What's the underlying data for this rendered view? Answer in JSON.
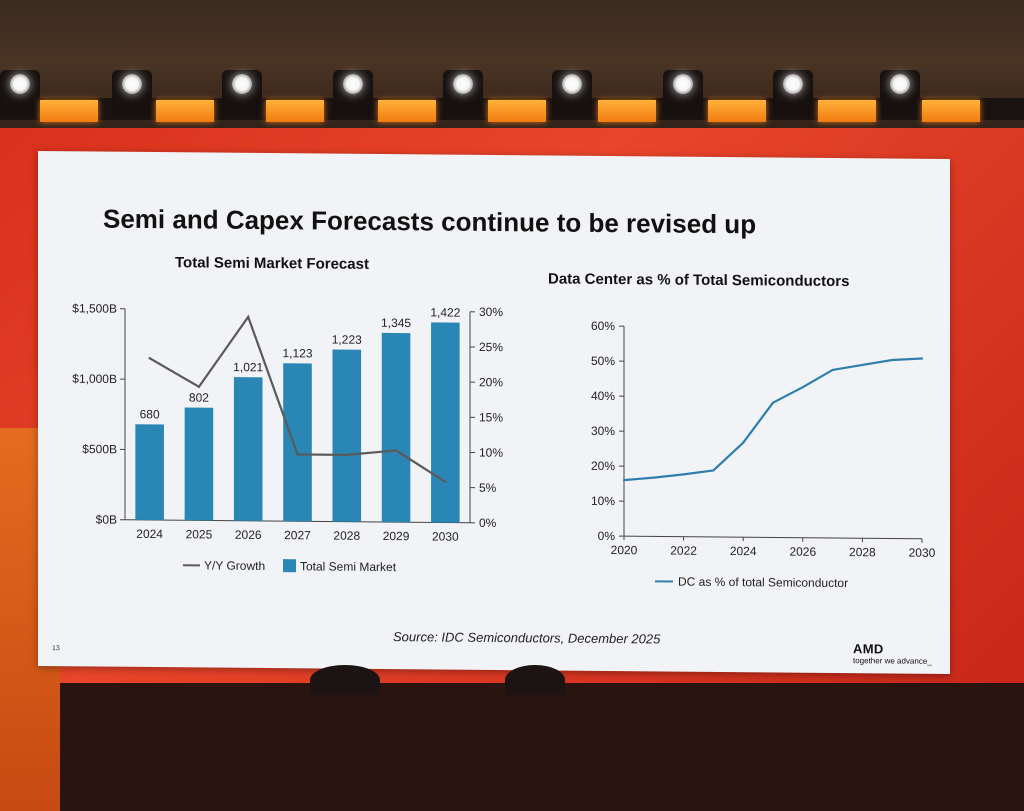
{
  "slide": {
    "title": "Semi and Capex Forecasts continue to be revised up",
    "source": "Source: IDC Semiconductors, December 2025",
    "page_number": "13",
    "logo": {
      "brand": "AMD",
      "tagline": "together we advance_"
    }
  },
  "chart_data": [
    {
      "type": "bar",
      "title": "Total Semi Market Forecast",
      "categories": [
        "2024",
        "2025",
        "2026",
        "2027",
        "2028",
        "2029",
        "2030"
      ],
      "series": [
        {
          "name": "Total Semi Market",
          "axis": "left",
          "chart_type": "bar",
          "color": "#2a86b5",
          "values": [
            680,
            802,
            1021,
            1123,
            1223,
            1345,
            1422
          ],
          "labels": [
            "680",
            "802",
            "1,021",
            "1,123",
            "1,223",
            "1,345",
            "1,422"
          ]
        },
        {
          "name": "Y/Y Growth",
          "axis": "right",
          "chart_type": "line",
          "color": "#5a5a5a",
          "values": [
            23,
            19,
            29,
            9.5,
            9.5,
            10.2,
            5.8
          ]
        }
      ],
      "left_axis": {
        "ylim": [
          0,
          1500
        ],
        "ticks": [
          0,
          500,
          1000,
          1500
        ],
        "tick_labels": [
          "$0B",
          "$500B",
          "$1,000B",
          "$1,500B"
        ]
      },
      "right_axis": {
        "ylim": [
          0,
          30
        ],
        "ticks": [
          0,
          5,
          10,
          15,
          20,
          25,
          30
        ],
        "tick_labels": [
          "0%",
          "5%",
          "10%",
          "15%",
          "20%",
          "25%",
          "30%"
        ]
      },
      "legend": [
        "Y/Y Growth",
        "Total Semi Market"
      ],
      "legend_position": "bottom",
      "grid": false
    },
    {
      "type": "line",
      "title": "Data Center as % of Total Semiconductors",
      "series": [
        {
          "name": "DC as % of total Semiconductor",
          "color": "#2f7fae",
          "x": [
            2020,
            2021,
            2022,
            2023,
            2024,
            2025,
            2026,
            2027,
            2028,
            2029,
            2030
          ],
          "y": [
            16,
            16.8,
            17.8,
            19,
            27,
            38.5,
            43,
            48,
            49.5,
            51,
            51.5
          ]
        }
      ],
      "x_ticks": [
        2020,
        2022,
        2024,
        2026,
        2028,
        2030
      ],
      "x_tick_labels": [
        "2020",
        "2022",
        "2024",
        "2026",
        "2028",
        "2030"
      ],
      "xlim": [
        2020,
        2030
      ],
      "ylim": [
        0,
        60
      ],
      "y_ticks": [
        0,
        10,
        20,
        30,
        40,
        50,
        60
      ],
      "y_tick_labels": [
        "0%",
        "10%",
        "20%",
        "30%",
        "40%",
        "50%",
        "60%"
      ],
      "legend": [
        "DC as % of total Semiconductor"
      ],
      "legend_position": "bottom",
      "grid": false
    }
  ]
}
